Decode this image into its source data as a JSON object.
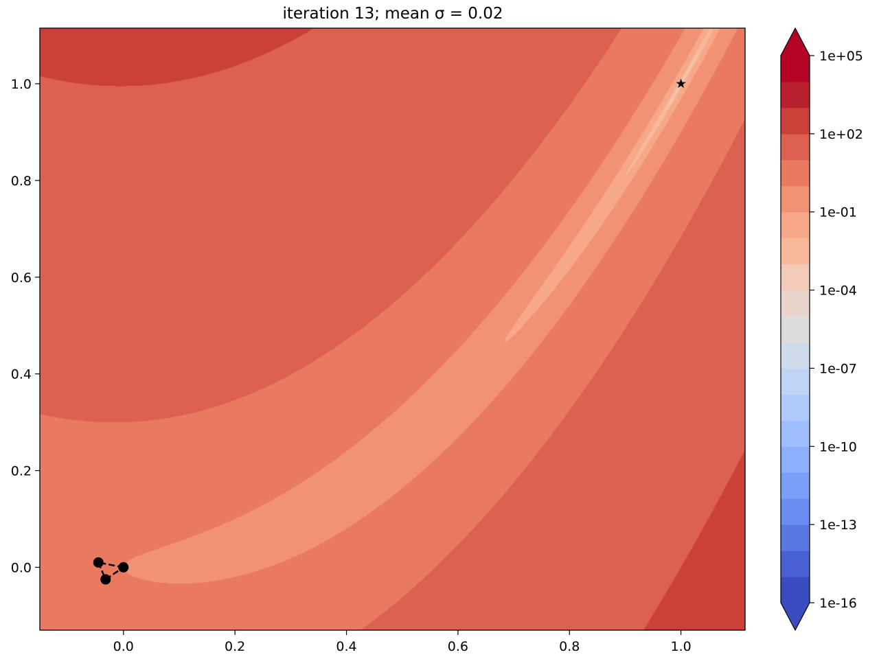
{
  "chart_data": {
    "type": "heatmap",
    "subtype": "filled-contour",
    "title": "iteration 13; mean σ = 0.02",
    "xlabel": "",
    "ylabel": "",
    "xlim": [
      -0.15,
      1.115
    ],
    "ylim": [
      -0.13,
      1.115
    ],
    "x_ticks": [
      "0.0",
      "0.2",
      "0.4",
      "0.6",
      "0.8",
      "1.0"
    ],
    "y_ticks": [
      "0.0",
      "0.2",
      "0.4",
      "0.6",
      "0.8",
      "1.0"
    ],
    "function": "Rosenbrock f(x,y) = (1-x)^2 + 100 (y - x^2)^2",
    "colormap": "coolwarm",
    "scale": "log",
    "extend": "both",
    "colorbar": {
      "ticks": [
        "1e-16",
        "1e-13",
        "1e-10",
        "1e-07",
        "1e-04",
        "1e-01",
        "1e+02",
        "1e+05"
      ],
      "level_exponents_min": -16,
      "level_exponents_max": 5,
      "band_colors": [
        "#3b4cc0",
        "#4961d2",
        "#5977e3",
        "#6a8bef",
        "#7b9ff9",
        "#8db0fe",
        "#9ebeff",
        "#b0cbfc",
        "#c0d4f5",
        "#cfdaea",
        "#dddcdc",
        "#e9d5cb",
        "#f2cab7",
        "#f7b89c",
        "#f7a889",
        "#f29274",
        "#e97a5f",
        "#dd6150",
        "#cc403a",
        "#b81f2f",
        "#b40426"
      ],
      "under_color": "#3b4cc0",
      "over_color": "#b40426"
    },
    "simplex_points": [
      {
        "x": -0.045,
        "y": 0.01
      },
      {
        "x": -0.032,
        "y": -0.025
      },
      {
        "x": 0.0,
        "y": 0.0
      }
    ],
    "optimum": {
      "x": 1.0,
      "y": 1.0,
      "marker": "star"
    },
    "point_color": "#000000"
  }
}
